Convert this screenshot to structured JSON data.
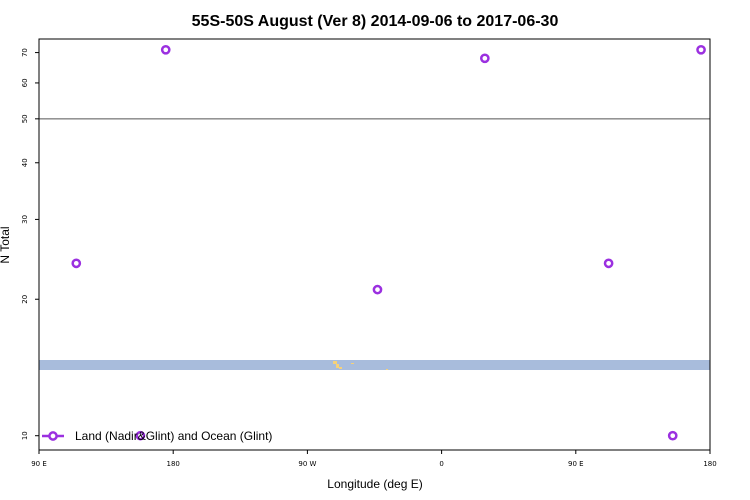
{
  "chart_data": {
    "type": "scatter",
    "title": "55S-50S August (Ver 8)   2014-09-06 to 2017-06-30",
    "xlabel": "Longitude (deg E)",
    "ylabel": "N Total",
    "x_scale": "linear",
    "y_scale": "log",
    "xlim": [
      90,
      540
    ],
    "ylim": [
      9.3,
      75
    ],
    "x_ticks": [
      {
        "value": 90,
        "label": "90 E"
      },
      {
        "value": 180,
        "label": "180"
      },
      {
        "value": 270,
        "label": "90 W"
      },
      {
        "value": 360,
        "label": "0"
      },
      {
        "value": 450,
        "label": "90 E"
      },
      {
        "value": 540,
        "label": "180"
      }
    ],
    "y_ticks": [
      10,
      20,
      30,
      40,
      50,
      60,
      70
    ],
    "reference_line_y": 50,
    "grid": false,
    "legend_position": "bottom-left",
    "marker_color": "#9b30e0",
    "series": [
      {
        "name": "Land (Nadir&Glint) and Ocean (Glint)",
        "x": [
          115,
          175,
          158,
          317,
          389,
          472,
          515,
          534
        ],
        "y": [
          24,
          71,
          10,
          21,
          68,
          24,
          10,
          71
        ]
      }
    ],
    "map_overlay": {
      "ocean_band_color": "#a8bcdc",
      "land_color": "#f5d17a"
    }
  }
}
